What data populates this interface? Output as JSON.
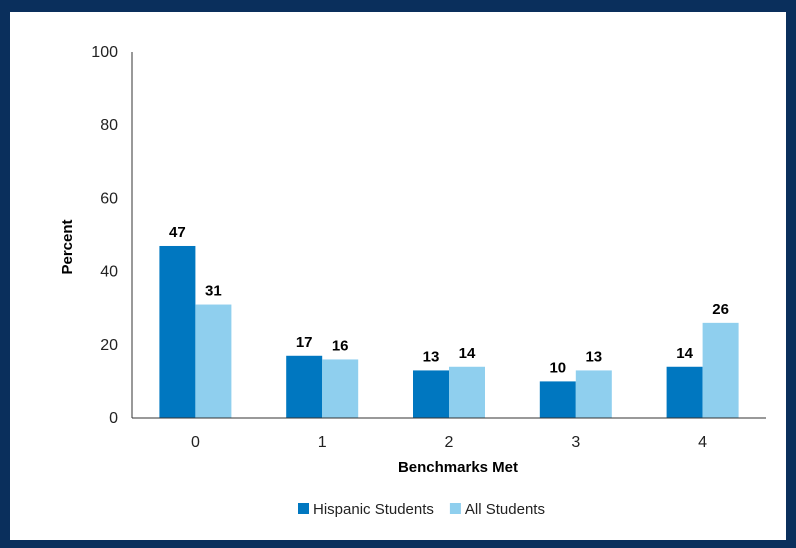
{
  "chart_data": {
    "type": "bar",
    "title": "",
    "xlabel": "Benchmarks Met",
    "ylabel": "Percent",
    "ylim": [
      0,
      100
    ],
    "yticks": [
      0,
      20,
      40,
      60,
      80,
      100
    ],
    "categories": [
      "0",
      "1",
      "2",
      "3",
      "4"
    ],
    "series": [
      {
        "name": "Hispanic Students",
        "values": [
          47,
          17,
          13,
          10,
          14
        ],
        "color": "#0077c0"
      },
      {
        "name": "All Students",
        "values": [
          31,
          16,
          14,
          13,
          26
        ],
        "color": "#8fcfee"
      }
    ],
    "grid": false,
    "legend_position": "bottom-center"
  }
}
